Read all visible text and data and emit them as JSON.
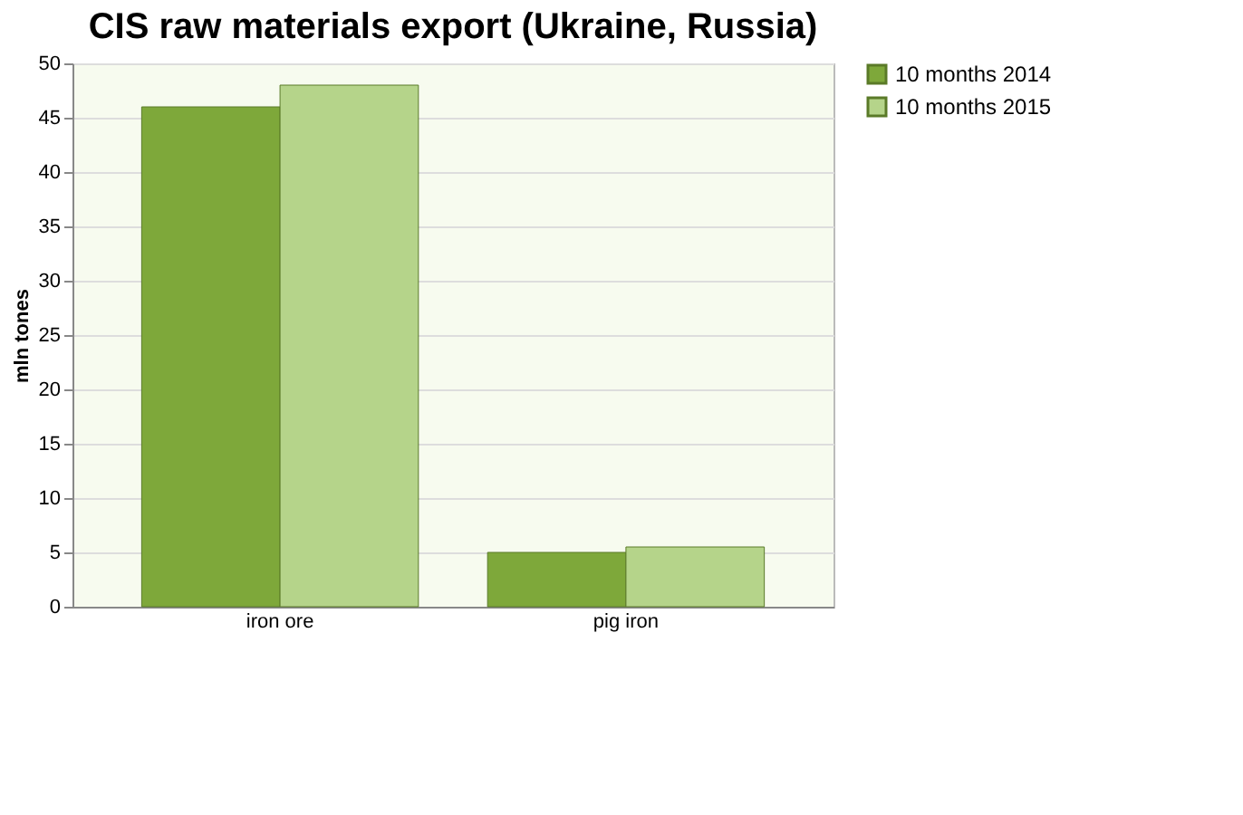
{
  "chart_data": {
    "type": "bar",
    "title": "CIS raw materials export (Ukraine, Russia)",
    "ylabel": "mln tones",
    "categories": [
      "iron ore",
      "pig iron"
    ],
    "series": [
      {
        "name": "10 months 2014",
        "color": "#7ea83a",
        "values": [
          46,
          5
        ]
      },
      {
        "name": "10 months 2015",
        "color": "#b5d48a",
        "values": [
          48,
          5.5
        ]
      }
    ],
    "ylim": [
      0,
      50
    ],
    "yticks": [
      0,
      5,
      10,
      15,
      20,
      25,
      30,
      35,
      40,
      45,
      50
    ],
    "grid": "y",
    "legend": "right"
  }
}
